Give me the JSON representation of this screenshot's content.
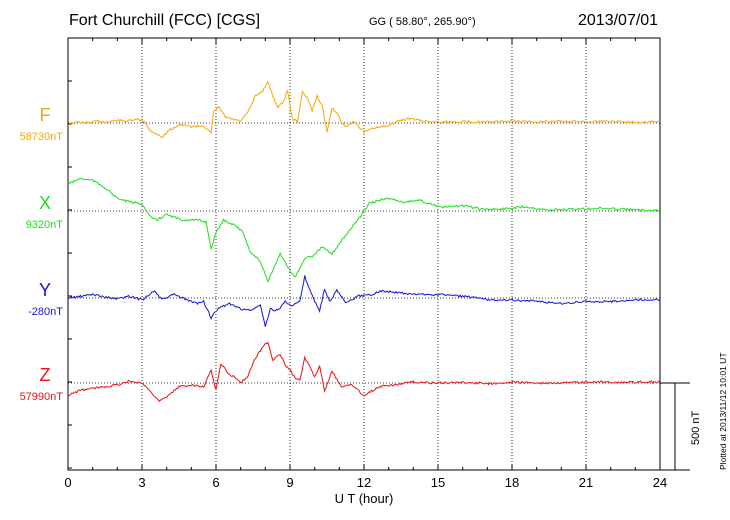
{
  "header": {
    "title": "Fort Churchill (FCC)  [CGS]",
    "coords": "GG ( 58.80°, 265.90°)",
    "date": "2013/07/01"
  },
  "footer": "Plotted at 2013/11/12 10:01  UT",
  "chart_data": {
    "type": "line",
    "xlabel": "U T (hour)",
    "xlim": [
      0,
      24
    ],
    "xticks": [
      "0",
      "3",
      "6",
      "9",
      "12",
      "15",
      "18",
      "21",
      "24"
    ],
    "scale_bar": "500 nT",
    "series": [
      {
        "name": "F",
        "baseline": "58730nT",
        "baseline_nt": 58730,
        "color": "#f5a800",
        "points": [
          [
            0,
            -10
          ],
          [
            0.4,
            5
          ],
          [
            0.8,
            0
          ],
          [
            1.2,
            10
          ],
          [
            1.6,
            5
          ],
          [
            2,
            15
          ],
          [
            2.4,
            10
          ],
          [
            2.8,
            20
          ],
          [
            3.1,
            10
          ],
          [
            3.3,
            -40
          ],
          [
            3.6,
            -60
          ],
          [
            3.8,
            -80
          ],
          [
            4.1,
            -40
          ],
          [
            4.5,
            -10
          ],
          [
            5,
            -20
          ],
          [
            5.5,
            -15
          ],
          [
            5.8,
            -60
          ],
          [
            5.9,
            60
          ],
          [
            6.1,
            90
          ],
          [
            6.4,
            30
          ],
          [
            6.7,
            20
          ],
          [
            7,
            10
          ],
          [
            7.3,
            60
          ],
          [
            7.6,
            150
          ],
          [
            7.9,
            180
          ],
          [
            8.1,
            230
          ],
          [
            8.3,
            150
          ],
          [
            8.5,
            90
          ],
          [
            8.7,
            110
          ],
          [
            8.9,
            180
          ],
          [
            9.1,
            20
          ],
          [
            9.3,
            10
          ],
          [
            9.5,
            170
          ],
          [
            9.7,
            140
          ],
          [
            9.9,
            70
          ],
          [
            10.1,
            150
          ],
          [
            10.3,
            100
          ],
          [
            10.5,
            -50
          ],
          [
            10.7,
            80
          ],
          [
            10.9,
            60
          ],
          [
            11.1,
            0
          ],
          [
            11.3,
            -20
          ],
          [
            11.6,
            10
          ],
          [
            12,
            -50
          ],
          [
            12.4,
            -30
          ],
          [
            12.8,
            -20
          ],
          [
            13.4,
            10
          ],
          [
            13.8,
            25
          ],
          [
            14.5,
            10
          ],
          [
            15,
            5
          ],
          [
            16,
            8
          ],
          [
            17,
            5
          ],
          [
            18,
            10
          ],
          [
            19,
            5
          ],
          [
            20,
            10
          ],
          [
            21,
            8
          ],
          [
            22,
            10
          ],
          [
            23,
            5
          ],
          [
            24,
            8
          ]
        ]
      },
      {
        "name": "X",
        "baseline": "9320nT",
        "baseline_nt": 9320,
        "color": "#1edc1e",
        "points": [
          [
            0,
            150
          ],
          [
            0.5,
            180
          ],
          [
            1,
            170
          ],
          [
            1.5,
            130
          ],
          [
            2,
            70
          ],
          [
            2.5,
            50
          ],
          [
            3,
            40
          ],
          [
            3.3,
            -30
          ],
          [
            3.6,
            -50
          ],
          [
            4,
            -20
          ],
          [
            4.6,
            -50
          ],
          [
            5.2,
            -50
          ],
          [
            5.6,
            -60
          ],
          [
            5.8,
            -210
          ],
          [
            6,
            -120
          ],
          [
            6.3,
            -50
          ],
          [
            6.8,
            -80
          ],
          [
            7.1,
            -120
          ],
          [
            7.4,
            -230
          ],
          [
            7.8,
            -280
          ],
          [
            8.1,
            -390
          ],
          [
            8.3,
            -330
          ],
          [
            8.6,
            -240
          ],
          [
            8.9,
            -310
          ],
          [
            9.2,
            -370
          ],
          [
            9.6,
            -260
          ],
          [
            9.9,
            -250
          ],
          [
            10.3,
            -200
          ],
          [
            10.7,
            -240
          ],
          [
            11,
            -180
          ],
          [
            11.4,
            -110
          ],
          [
            11.8,
            -40
          ],
          [
            12.2,
            40
          ],
          [
            12.6,
            60
          ],
          [
            13,
            70
          ],
          [
            13.6,
            50
          ],
          [
            14.2,
            60
          ],
          [
            14.7,
            40
          ],
          [
            15.2,
            20
          ],
          [
            16,
            30
          ],
          [
            16.8,
            10
          ],
          [
            17.5,
            10
          ],
          [
            18.5,
            25
          ],
          [
            19.5,
            5
          ],
          [
            20.5,
            10
          ],
          [
            21.5,
            15
          ],
          [
            22.5,
            10
          ],
          [
            23.2,
            5
          ],
          [
            24,
            5
          ]
        ]
      },
      {
        "name": "Y",
        "baseline": "-280nT",
        "baseline_nt": -280,
        "color": "#1414dc",
        "points": [
          [
            0,
            0
          ],
          [
            0.6,
            10
          ],
          [
            1,
            20
          ],
          [
            1.5,
            5
          ],
          [
            2,
            -5
          ],
          [
            2.5,
            10
          ],
          [
            3,
            -10
          ],
          [
            3.5,
            40
          ],
          [
            3.8,
            -10
          ],
          [
            4.3,
            20
          ],
          [
            4.8,
            -10
          ],
          [
            5.2,
            -30
          ],
          [
            5.5,
            -20
          ],
          [
            5.8,
            -110
          ],
          [
            6.1,
            -60
          ],
          [
            6.5,
            -30
          ],
          [
            7,
            -60
          ],
          [
            7.4,
            -70
          ],
          [
            7.8,
            -40
          ],
          [
            8,
            -160
          ],
          [
            8.2,
            -60
          ],
          [
            8.5,
            -70
          ],
          [
            8.8,
            -20
          ],
          [
            9.1,
            -40
          ],
          [
            9.4,
            -20
          ],
          [
            9.6,
            120
          ],
          [
            9.9,
            10
          ],
          [
            10.2,
            -70
          ],
          [
            10.4,
            50
          ],
          [
            10.6,
            -20
          ],
          [
            10.9,
            40
          ],
          [
            11.3,
            -30
          ],
          [
            11.7,
            10
          ],
          [
            12.3,
            20
          ],
          [
            12.7,
            40
          ],
          [
            13.3,
            30
          ],
          [
            14,
            20
          ],
          [
            15,
            20
          ],
          [
            16,
            10
          ],
          [
            17,
            -10
          ],
          [
            18,
            -10
          ],
          [
            19,
            -20
          ],
          [
            20,
            -30
          ],
          [
            21,
            -20
          ],
          [
            22,
            -20
          ],
          [
            23,
            -10
          ],
          [
            24,
            -10
          ]
        ]
      },
      {
        "name": "Z",
        "baseline": "57990nT",
        "baseline_nt": 57990,
        "color": "#e61414",
        "points": [
          [
            0,
            -70
          ],
          [
            0.5,
            -40
          ],
          [
            1,
            -30
          ],
          [
            1.5,
            -20
          ],
          [
            2,
            -10
          ],
          [
            2.5,
            10
          ],
          [
            3,
            0
          ],
          [
            3.3,
            -40
          ],
          [
            3.7,
            -100
          ],
          [
            4,
            -80
          ],
          [
            4.5,
            -20
          ],
          [
            5,
            -10
          ],
          [
            5.5,
            -20
          ],
          [
            5.8,
            70
          ],
          [
            6,
            -40
          ],
          [
            6.2,
            110
          ],
          [
            6.5,
            50
          ],
          [
            6.8,
            30
          ],
          [
            7,
            0
          ],
          [
            7.3,
            40
          ],
          [
            7.6,
            140
          ],
          [
            7.9,
            200
          ],
          [
            8.1,
            230
          ],
          [
            8.3,
            130
          ],
          [
            8.6,
            160
          ],
          [
            8.8,
            100
          ],
          [
            9,
            70
          ],
          [
            9.2,
            30
          ],
          [
            9.4,
            20
          ],
          [
            9.6,
            140
          ],
          [
            9.8,
            90
          ],
          [
            10,
            30
          ],
          [
            10.2,
            100
          ],
          [
            10.4,
            -50
          ],
          [
            10.7,
            70
          ],
          [
            10.9,
            20
          ],
          [
            11.1,
            -20
          ],
          [
            11.5,
            -10
          ],
          [
            12,
            -70
          ],
          [
            12.6,
            -20
          ],
          [
            13.2,
            -10
          ],
          [
            14,
            5
          ],
          [
            15,
            0
          ],
          [
            16,
            5
          ],
          [
            17,
            -5
          ],
          [
            18,
            5
          ],
          [
            19,
            0
          ],
          [
            20,
            0
          ],
          [
            21,
            5
          ],
          [
            22,
            5
          ],
          [
            23,
            5
          ],
          [
            24,
            5
          ]
        ]
      }
    ]
  }
}
